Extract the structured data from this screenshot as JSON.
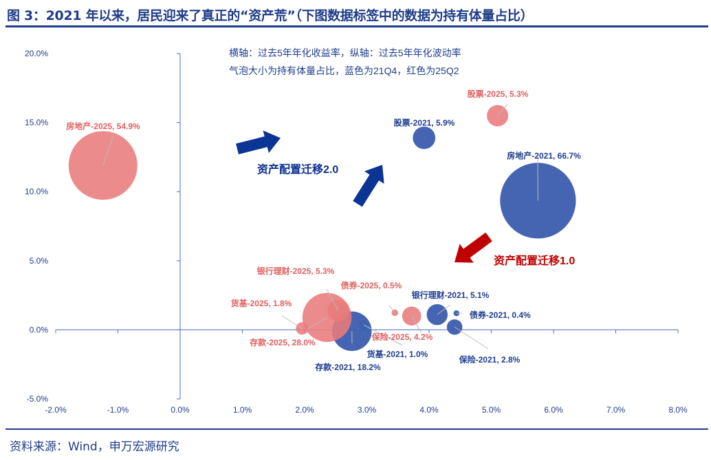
{
  "header": {
    "title": "图 3：2021 年以来，居民迎来了真正的“资产荒”（下图数据标签中的数据为持有体量占比）"
  },
  "footer": {
    "source": "资料来源：Wind，申万宏源研究"
  },
  "chart_data": {
    "type": "scatter",
    "subtype": "bubble",
    "xlim": [
      -0.02,
      0.08
    ],
    "ylim": [
      -0.05,
      0.2
    ],
    "x_ticks": [
      "-2.0%",
      "-1.0%",
      "0.0%",
      "1.0%",
      "2.0%",
      "3.0%",
      "4.0%",
      "5.0%",
      "6.0%",
      "7.0%",
      "8.0%"
    ],
    "y_ticks": [
      "-5.0%",
      "0.0%",
      "5.0%",
      "10.0%",
      "15.0%",
      "20.0%"
    ],
    "grid": false,
    "annotations": [
      "横轴：过去5年年化收益率，纵轴：过去5年年化波动率",
      "气泡大小为持有体量占比，蓝色为21Q4，红色为25Q2"
    ],
    "arrow_labels": [
      {
        "text": "资产配置迁移2.0",
        "color": "#0B2F8F"
      },
      {
        "text": "资产配置迁移1.0",
        "color": "#C00000"
      }
    ],
    "colors": {
      "2021": "#3F60B0",
      "2025": "#E97B7B",
      "label_2021": "#1F3D8F",
      "label_2025": "#E06060"
    },
    "series": [
      {
        "name": "21Q4",
        "points": [
          {
            "label": "房地产-2021, 66.7%",
            "x": 0.0575,
            "y": 0.0935,
            "size": 66.7
          },
          {
            "label": "股票-2021, 5.9%",
            "x": 0.0392,
            "y": 0.139,
            "size": 5.9
          },
          {
            "label": "存款-2021, 18.2%",
            "x": 0.0276,
            "y": -0.001,
            "size": 18.2
          },
          {
            "label": "货基-2021, 1.0%",
            "x": 0.0295,
            "y": 0.0035,
            "size": 1.0
          },
          {
            "label": "银行理财-2021, 5.1%",
            "x": 0.0413,
            "y": 0.011,
            "size": 5.1
          },
          {
            "label": "债券-2021, 0.4%",
            "x": 0.0444,
            "y": 0.012,
            "size": 0.4
          },
          {
            "label": "保险-2021, 2.8%",
            "x": 0.0441,
            "y": 0.002,
            "size": 2.8
          }
        ]
      },
      {
        "name": "25Q2",
        "points": [
          {
            "label": "房地产-2025, 54.9%",
            "x": -0.0124,
            "y": 0.119,
            "size": 54.9
          },
          {
            "label": "股票-2025, 5.3%",
            "x": 0.051,
            "y": 0.155,
            "size": 5.3
          },
          {
            "label": "存款-2025, 28.0%",
            "x": 0.0236,
            "y": 0.009,
            "size": 28.0
          },
          {
            "label": "银行理财-2025, 5.3%",
            "x": 0.0254,
            "y": 0.014,
            "size": 5.3
          },
          {
            "label": "货基-2025, 1.8%",
            "x": 0.0196,
            "y": 0.001,
            "size": 1.8
          },
          {
            "label": "债券-2025, 0.5%",
            "x": 0.0345,
            "y": 0.0124,
            "size": 0.5
          },
          {
            "label": "保险-2025, 4.2%",
            "x": 0.0372,
            "y": 0.01,
            "size": 4.2
          }
        ]
      }
    ]
  }
}
